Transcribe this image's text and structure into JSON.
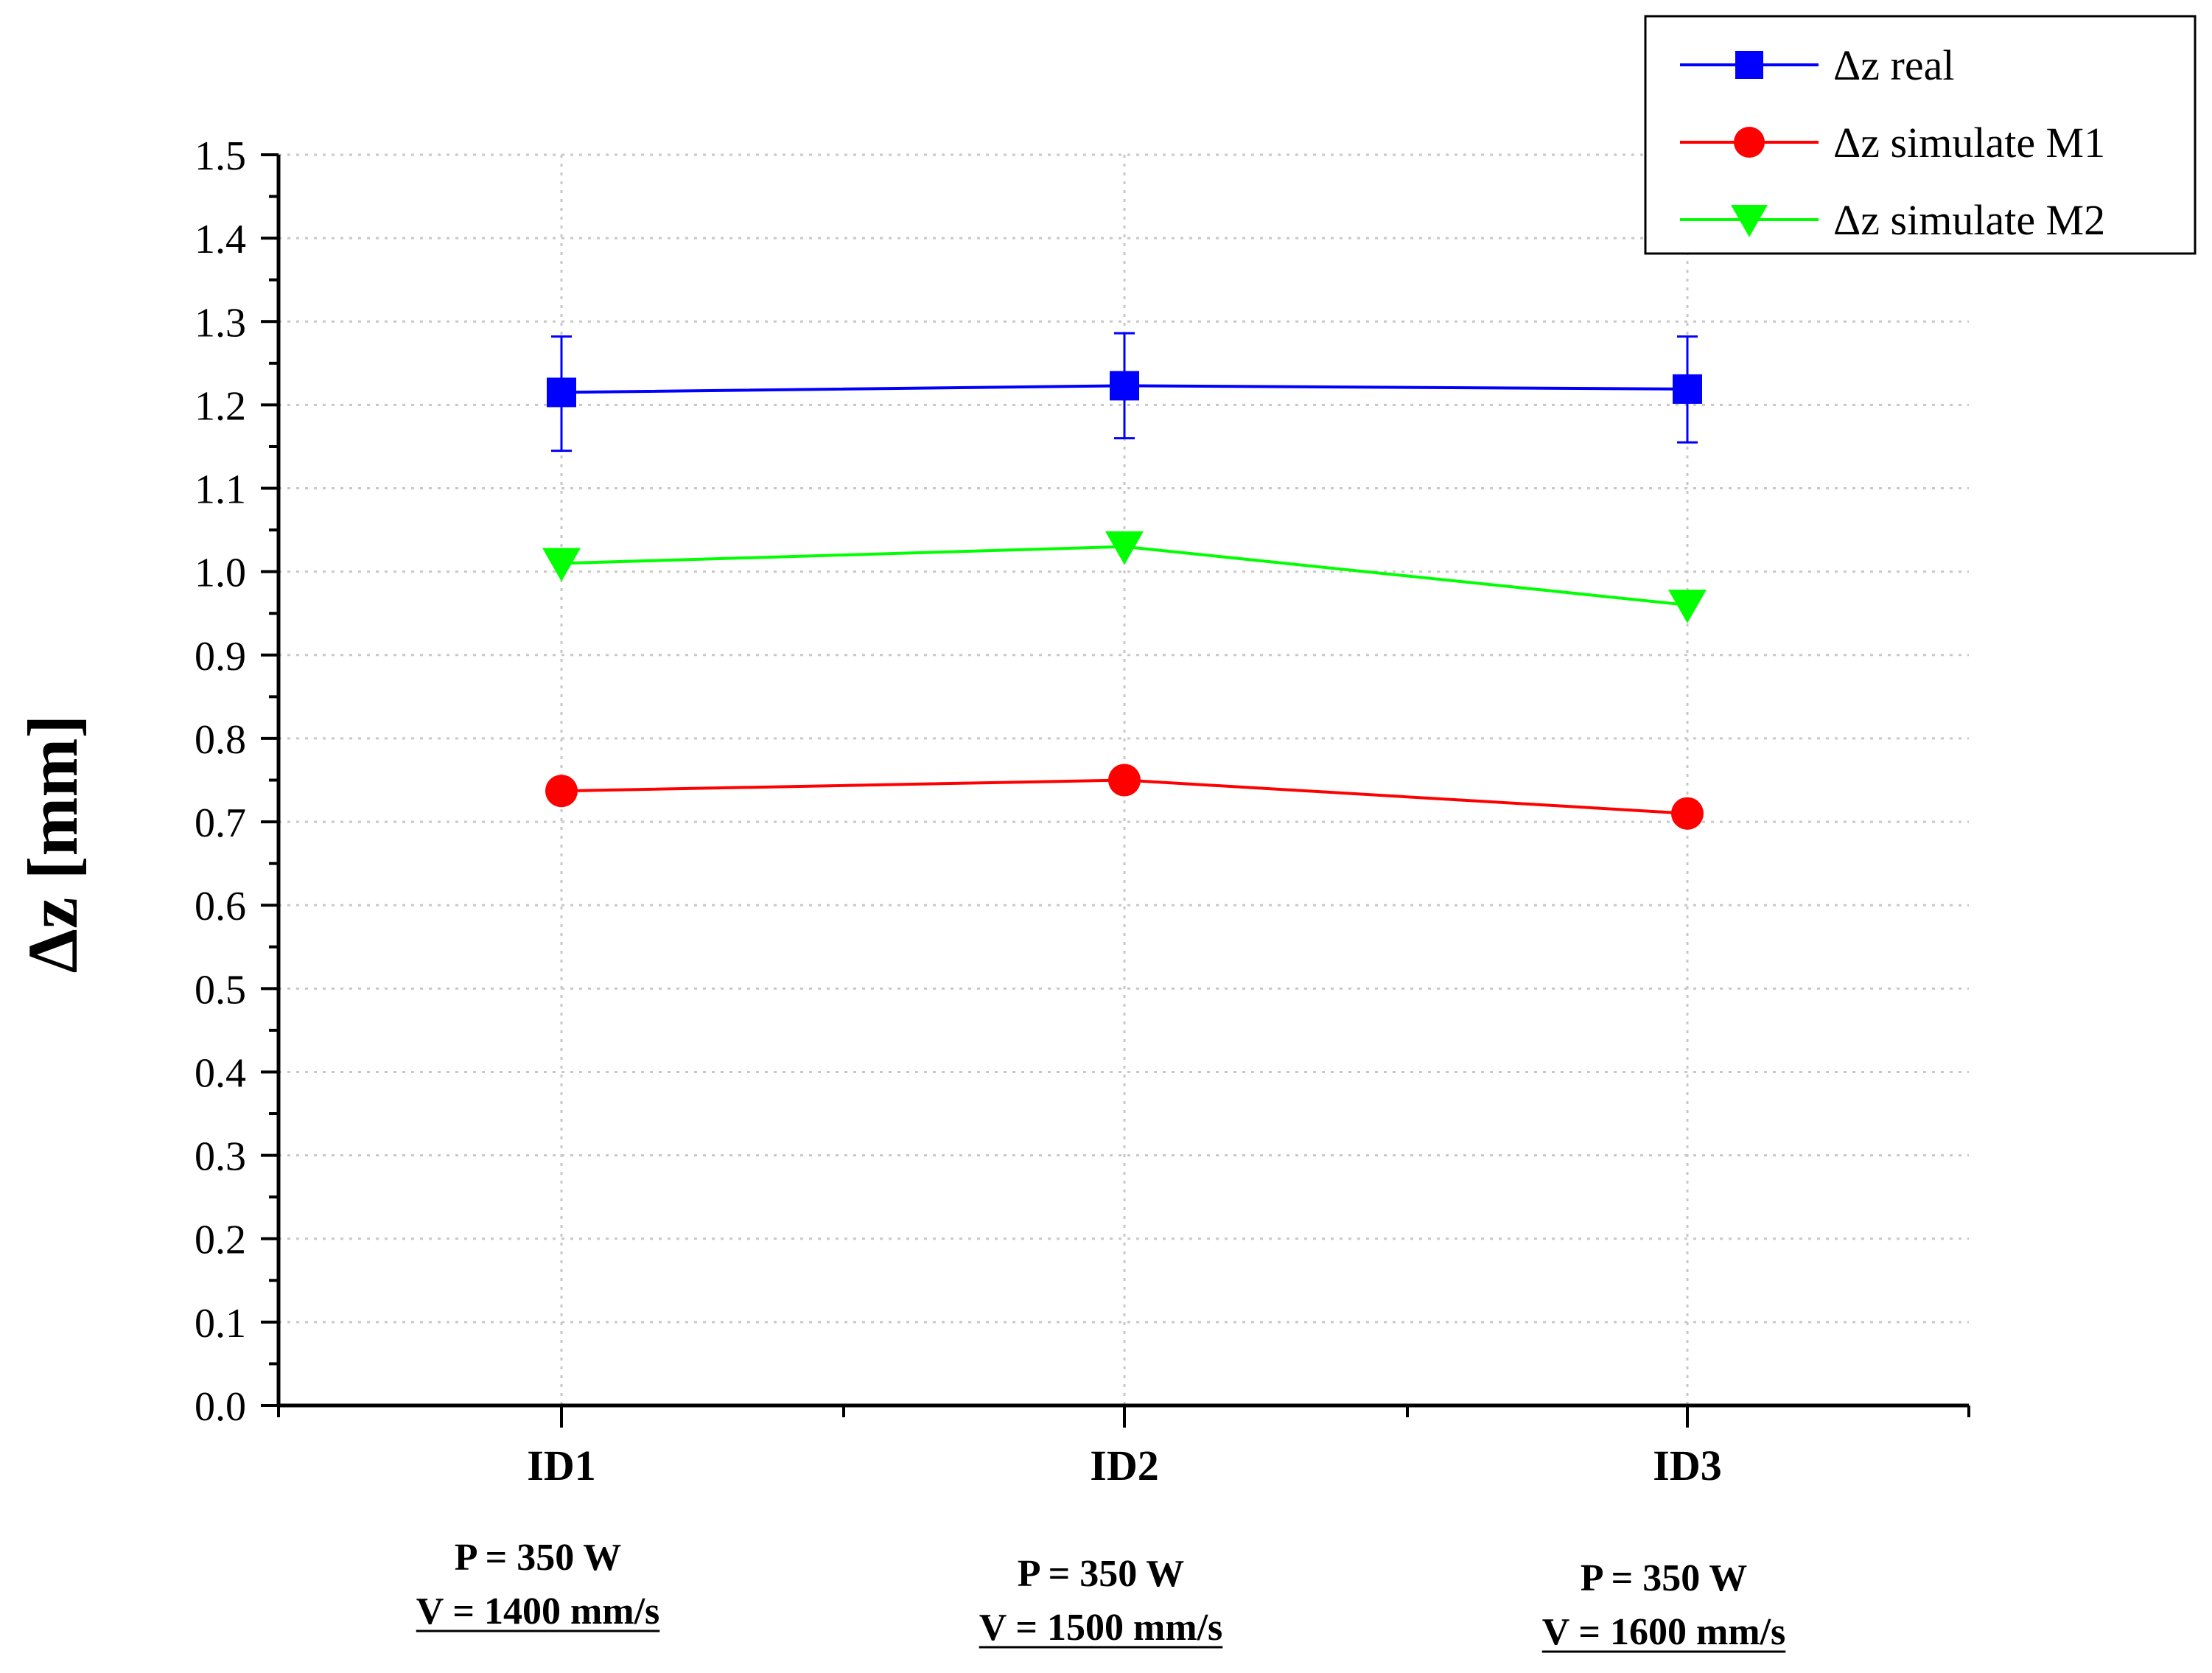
{
  "chart_data": {
    "type": "line",
    "title": "",
    "xlabel": "",
    "ylabel": "Δz [mm]",
    "ylim": [
      0,
      1.5
    ],
    "yticks": [
      "0.0",
      "0.1",
      "0.2",
      "0.3",
      "0.4",
      "0.5",
      "0.6",
      "0.7",
      "0.8",
      "0.9",
      "1.0",
      "1.1",
      "1.2",
      "1.3",
      "1.4",
      "1.5"
    ],
    "grid": true,
    "legend_position": "top-right",
    "categories": [
      "ID1",
      "ID2",
      "ID3"
    ],
    "conditions": [
      {
        "power": "P = 350 W",
        "speed": "V = 1400 mm/s"
      },
      {
        "power": "P = 350 W",
        "speed": "V = 1500 mm/s"
      },
      {
        "power": "P = 350 W",
        "speed": "V = 1600 mm/s"
      }
    ],
    "series": [
      {
        "name": "Δz real",
        "color": "#0000ff",
        "marker": "square",
        "values": [
          1.215,
          1.223,
          1.219
        ],
        "error_low": [
          1.145,
          1.16,
          1.155
        ],
        "error_high": [
          1.282,
          1.286,
          1.282
        ]
      },
      {
        "name": "Δz simulate M1",
        "color": "#ff0000",
        "marker": "circle",
        "values": [
          0.737,
          0.75,
          0.71
        ]
      },
      {
        "name": "Δz simulate M2",
        "color": "#00ff00",
        "marker": "triangle-down",
        "values": [
          1.01,
          1.03,
          0.96
        ]
      }
    ]
  }
}
